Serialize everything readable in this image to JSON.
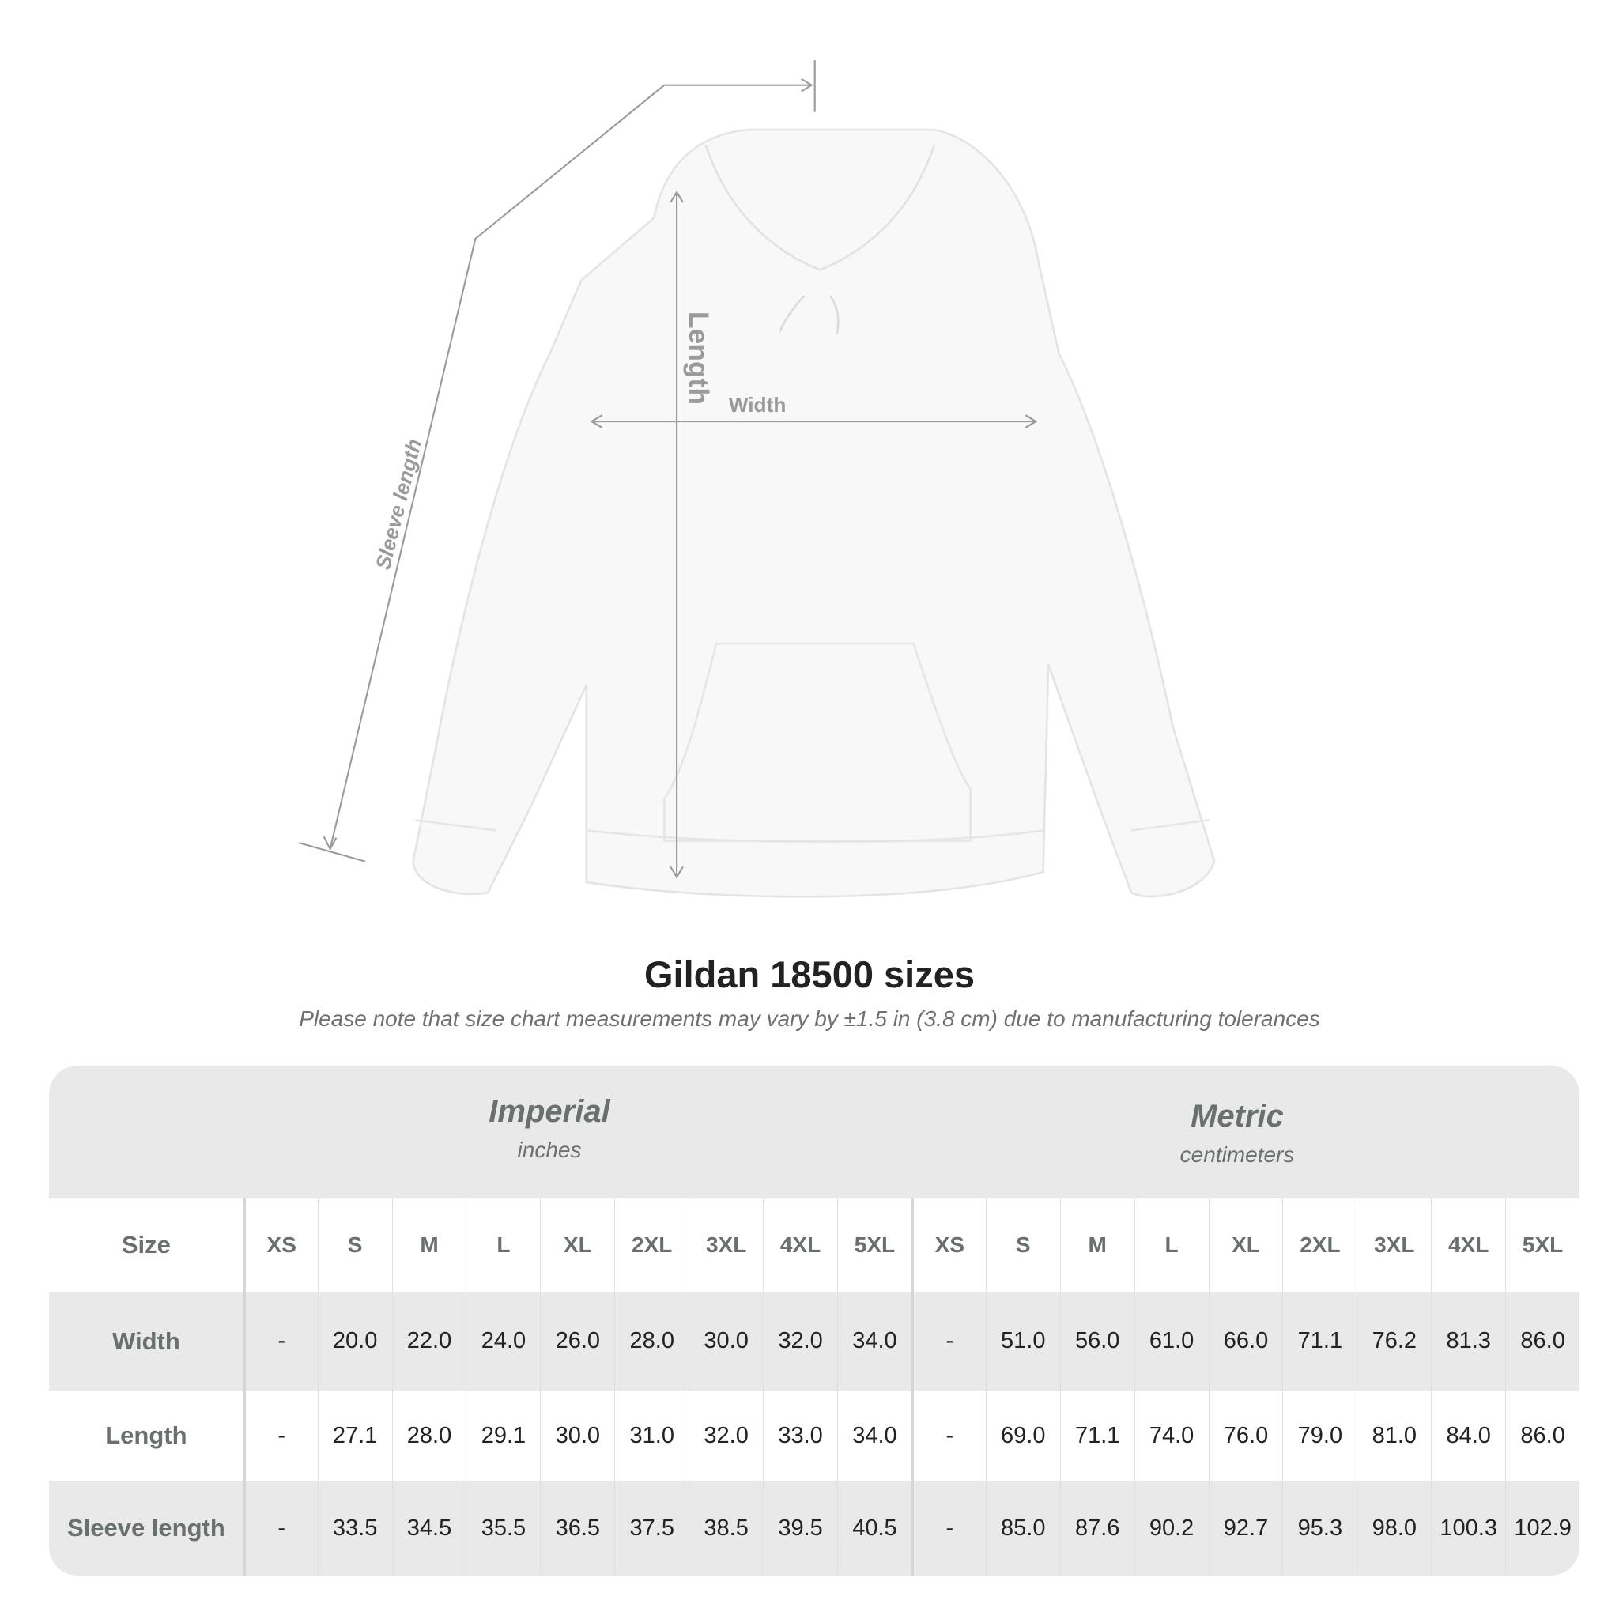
{
  "diagram": {
    "labels": {
      "length": "Length",
      "width": "Width",
      "sleeve": "Sleeve length"
    },
    "line_color": "#9a9a9a"
  },
  "title": "Gildan 18500 sizes",
  "note": "Please note that size chart measurements may vary by ±1.5 in (3.8 cm) due to manufacturing tolerances",
  "table": {
    "imperial": {
      "name": "Imperial",
      "unit": "inches"
    },
    "metric": {
      "name": "Metric",
      "unit": "centimeters"
    },
    "size_label": "Size",
    "sizes": [
      "XS",
      "S",
      "M",
      "L",
      "XL",
      "2XL",
      "3XL",
      "4XL",
      "5XL"
    ],
    "rows": [
      {
        "label": "Width",
        "imperial": [
          "-",
          "20.0",
          "22.0",
          "24.0",
          "26.0",
          "28.0",
          "30.0",
          "32.0",
          "34.0"
        ],
        "metric": [
          "-",
          "51.0",
          "56.0",
          "61.0",
          "66.0",
          "71.1",
          "76.2",
          "81.3",
          "86.0"
        ]
      },
      {
        "label": "Length",
        "imperial": [
          "-",
          "27.1",
          "28.0",
          "29.1",
          "30.0",
          "31.0",
          "32.0",
          "33.0",
          "34.0"
        ],
        "metric": [
          "-",
          "69.0",
          "71.1",
          "74.0",
          "76.0",
          "79.0",
          "81.0",
          "84.0",
          "86.0"
        ]
      },
      {
        "label": "Sleeve length",
        "imperial": [
          "-",
          "33.5",
          "34.5",
          "35.5",
          "36.5",
          "37.5",
          "38.5",
          "39.5",
          "40.5"
        ],
        "metric": [
          "-",
          "85.0",
          "87.6",
          "90.2",
          "92.7",
          "95.3",
          "98.0",
          "100.3",
          "102.9"
        ]
      }
    ]
  }
}
